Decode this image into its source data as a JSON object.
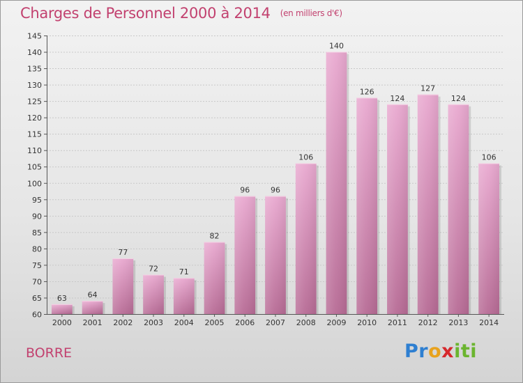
{
  "header": {
    "title": "Charges de Personnel 2000 à 2014",
    "subtitle": "(en milliers d'€)"
  },
  "footer": {
    "city": "BORRE",
    "logo_parts": [
      "Pr",
      "o",
      "x",
      "iti"
    ]
  },
  "colors": {
    "title": "#c2416f",
    "bar_top": "#e9a9d0",
    "bar_bottom": "#b76b95"
  },
  "chart_data": {
    "type": "bar",
    "title": "Charges de Personnel 2000 à 2014",
    "subtitle": "(en milliers d'€)",
    "categories": [
      "2000",
      "2001",
      "2002",
      "2003",
      "2004",
      "2005",
      "2006",
      "2007",
      "2008",
      "2009",
      "2010",
      "2011",
      "2012",
      "2013",
      "2014"
    ],
    "values": [
      63,
      64,
      77,
      72,
      71,
      82,
      96,
      96,
      106,
      140,
      126,
      124,
      127,
      124,
      106
    ],
    "xlabel": "",
    "ylabel": "",
    "ylim": [
      60,
      145
    ],
    "yticks": [
      60,
      65,
      70,
      75,
      80,
      85,
      90,
      95,
      100,
      105,
      110,
      115,
      120,
      125,
      130,
      135,
      140,
      145
    ],
    "grid": true
  }
}
